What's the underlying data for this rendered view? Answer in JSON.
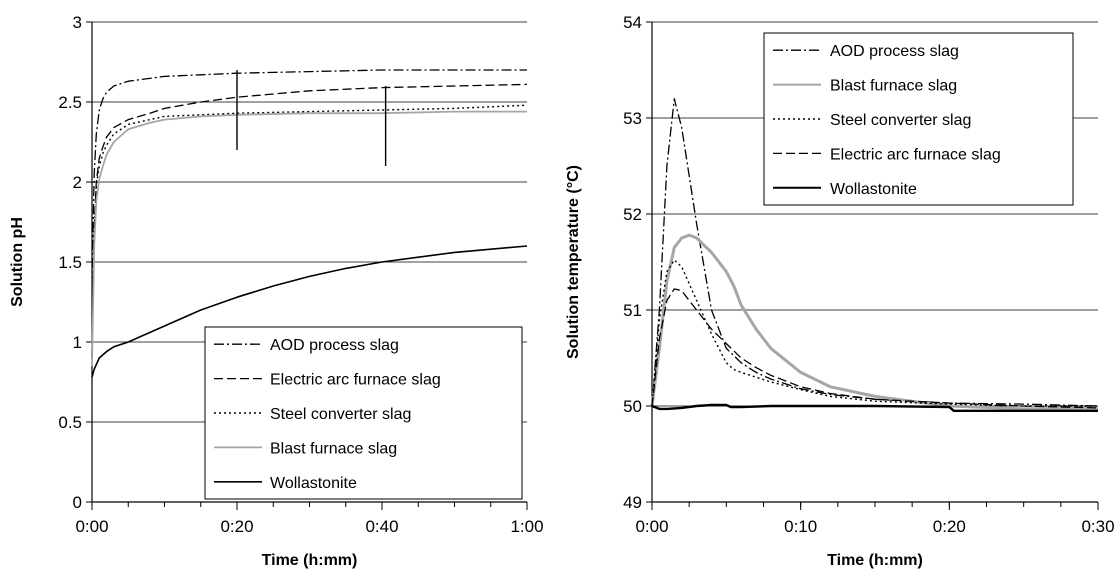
{
  "chart_data": [
    {
      "type": "line",
      "xlabel": "Time (h:mm)",
      "ylabel": "Solution pH",
      "xlim": [
        0,
        60
      ],
      "ylim": [
        0,
        3
      ],
      "x_ticks": [
        0,
        20,
        40,
        60
      ],
      "x_tick_labels": [
        "0:00",
        "0:20",
        "0:40",
        "1:00"
      ],
      "x_minor_step": 5,
      "y_ticks": [
        0,
        0.5,
        1,
        1.5,
        2,
        2.5,
        3
      ],
      "y_tick_labels": [
        "0",
        "0.5",
        "1",
        "1.5",
        "2",
        "2.5",
        "3"
      ],
      "grid": "horizontal major",
      "legend_position": "lower-right",
      "series": [
        {
          "name": "AOD process slag",
          "color": "#000000",
          "dash": "10,3,2,3",
          "width": 1.3,
          "x": [
            0,
            0.1,
            0.3,
            0.6,
            1,
            1.5,
            2,
            3,
            5,
            10,
            15,
            20,
            30,
            40,
            50,
            60
          ],
          "y": [
            0.9,
            1.6,
            2.05,
            2.3,
            2.45,
            2.52,
            2.56,
            2.6,
            2.63,
            2.66,
            2.67,
            2.68,
            2.69,
            2.7,
            2.7,
            2.7
          ]
        },
        {
          "name": "Electric arc furnace slag",
          "color": "#000000",
          "dash": "9,4",
          "width": 1.3,
          "x": [
            0,
            0.3,
            0.6,
            1,
            1.5,
            2,
            3,
            5,
            8,
            10,
            15,
            20,
            30,
            40,
            50,
            60
          ],
          "y": [
            0.9,
            1.7,
            2.0,
            2.15,
            2.22,
            2.28,
            2.34,
            2.39,
            2.43,
            2.46,
            2.5,
            2.53,
            2.57,
            2.59,
            2.6,
            2.61
          ]
        },
        {
          "name": "Steel converter slag",
          "color": "#000000",
          "dash": "2,3",
          "width": 1.4,
          "x": [
            0,
            0.3,
            0.6,
            1,
            1.5,
            2,
            3,
            5,
            8,
            10,
            15,
            20,
            30,
            40,
            50,
            60
          ],
          "y": [
            0.9,
            1.7,
            1.98,
            2.1,
            2.18,
            2.23,
            2.3,
            2.36,
            2.39,
            2.41,
            2.42,
            2.43,
            2.44,
            2.45,
            2.46,
            2.48
          ]
        },
        {
          "name": "Blast furnace slag",
          "color": "#a6a6a6",
          "dash": "",
          "width": 1.8,
          "x": [
            0,
            0.3,
            0.6,
            1,
            1.5,
            2,
            3,
            5,
            8,
            10,
            15,
            20,
            30,
            40,
            50,
            60
          ],
          "y": [
            0.85,
            1.6,
            1.88,
            2.02,
            2.1,
            2.17,
            2.25,
            2.33,
            2.37,
            2.39,
            2.41,
            2.42,
            2.43,
            2.43,
            2.44,
            2.44
          ]
        },
        {
          "name": "Wollastonite",
          "color": "#000000",
          "dash": "",
          "width": 1.6,
          "x": [
            0,
            0.3,
            1,
            2,
            3,
            5,
            8,
            10,
            15,
            20,
            25,
            30,
            35,
            40,
            45,
            50,
            55,
            60
          ],
          "y": [
            0.78,
            0.83,
            0.9,
            0.94,
            0.97,
            1.0,
            1.06,
            1.1,
            1.2,
            1.28,
            1.35,
            1.41,
            1.46,
            1.5,
            1.53,
            1.56,
            1.58,
            1.6
          ]
        }
      ],
      "marker_lines": [
        {
          "x": 20,
          "y_from": 2.7,
          "y_to": 2.2
        },
        {
          "x": 40.5,
          "y_from": 2.6,
          "y_to": 2.1
        }
      ]
    },
    {
      "type": "line",
      "xlabel": "Time (h:mm)",
      "ylabel": "Solution temperature (°C)",
      "xlim": [
        0,
        30
      ],
      "ylim": [
        49,
        54
      ],
      "x_ticks": [
        0,
        10,
        20,
        30
      ],
      "x_tick_labels": [
        "0:00",
        "0:10",
        "0:20",
        "0:30"
      ],
      "x_minor_step": 2.5,
      "y_ticks": [
        49,
        50,
        51,
        52,
        53,
        54
      ],
      "y_tick_labels": [
        "49",
        "50",
        "51",
        "52",
        "53",
        "54"
      ],
      "grid": "horizontal major",
      "legend_position": "top-right",
      "series": [
        {
          "name": "AOD process slag",
          "color": "#000000",
          "dash": "10,3,2,3",
          "width": 1.3,
          "x": [
            0,
            0.5,
            1,
            1.5,
            2,
            3,
            4,
            5,
            6,
            7,
            8,
            10,
            12,
            15,
            20,
            25,
            30
          ],
          "y": [
            50.0,
            51.0,
            52.5,
            53.2,
            52.9,
            51.9,
            51.0,
            50.6,
            50.45,
            50.35,
            50.28,
            50.18,
            50.12,
            50.07,
            50.03,
            50.02,
            50.0
          ]
        },
        {
          "name": "Blast furnace slag",
          "color": "#a6a6a6",
          "dash": "",
          "width": 3,
          "x": [
            0,
            0.5,
            1,
            1.5,
            2,
            2.5,
            3,
            4,
            5,
            5.5,
            6,
            7,
            8,
            10,
            12,
            15,
            18,
            20,
            25,
            30
          ],
          "y": [
            50.0,
            50.6,
            51.3,
            51.65,
            51.75,
            51.78,
            51.75,
            51.6,
            51.4,
            51.25,
            51.05,
            50.8,
            50.6,
            50.35,
            50.2,
            50.1,
            50.04,
            50.0,
            49.97,
            49.98
          ]
        },
        {
          "name": "Steel converter slag",
          "color": "#000000",
          "dash": "2,3",
          "width": 1.4,
          "x": [
            0,
            0.5,
            1,
            1.5,
            2,
            3,
            4,
            5,
            5.5,
            6,
            7,
            8,
            10,
            12,
            15,
            20,
            25,
            30
          ],
          "y": [
            50.0,
            50.9,
            51.4,
            51.52,
            51.45,
            51.1,
            50.75,
            50.45,
            50.38,
            50.35,
            50.3,
            50.25,
            50.17,
            50.1,
            50.05,
            50.02,
            50.0,
            50.0
          ]
        },
        {
          "name": "Electric arc furnace slag",
          "color": "#000000",
          "dash": "9,4",
          "width": 1.3,
          "x": [
            0,
            0.5,
            1,
            1.5,
            2,
            3,
            4,
            5,
            6,
            7,
            8,
            10,
            12,
            15,
            20,
            25,
            30
          ],
          "y": [
            50.0,
            50.7,
            51.1,
            51.22,
            51.2,
            51.0,
            50.8,
            50.65,
            50.5,
            50.4,
            50.32,
            50.2,
            50.13,
            50.07,
            50.03,
            50.0,
            49.98
          ]
        },
        {
          "name": "Wollastonite",
          "color": "#000000",
          "dash": "",
          "width": 2.4,
          "x": [
            0,
            0.5,
            1,
            2,
            3,
            4,
            5,
            5.3,
            6,
            8,
            10,
            15,
            20,
            20.3,
            25,
            30
          ],
          "y": [
            50.0,
            49.97,
            49.97,
            49.98,
            50.0,
            50.01,
            50.01,
            49.99,
            49.99,
            50.0,
            50.0,
            50.0,
            49.99,
            49.95,
            49.95,
            49.95
          ]
        }
      ]
    }
  ]
}
